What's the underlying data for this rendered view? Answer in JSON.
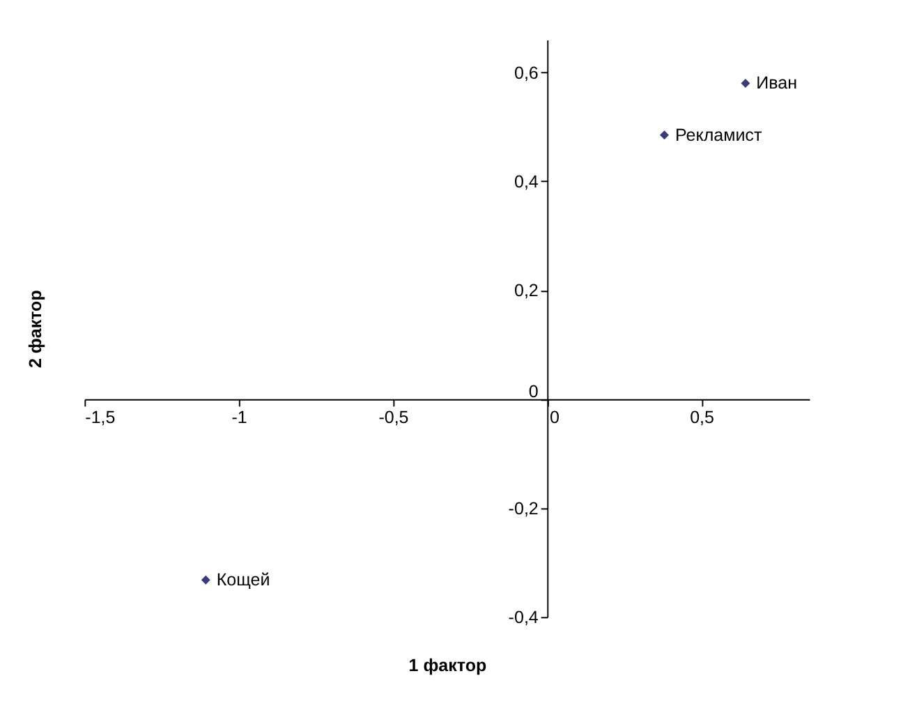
{
  "chart_data": {
    "type": "scatter",
    "xlabel": "1 фактор",
    "ylabel": "2 фактор",
    "xlim": [
      -1.5,
      0.85
    ],
    "ylim": [
      -0.4,
      0.66
    ],
    "xticks": [
      {
        "value": -1.5,
        "label": "-1,5"
      },
      -1,
      {
        "value": -0.5,
        "label": "-0,5"
      },
      0,
      {
        "value": 0.5,
        "label": "0,5"
      }
    ],
    "yticks": [
      {
        "value": -0.4,
        "label": "-0,4"
      },
      {
        "value": -0.2,
        "label": "-0,2"
      },
      0,
      {
        "value": 0.2,
        "label": "0,2"
      },
      {
        "value": 0.4,
        "label": "0,4"
      },
      {
        "value": 0.6,
        "label": "0,6"
      }
    ],
    "series": [
      {
        "name": "Иван",
        "color": "#3b3b7a",
        "x": [
          0.643
        ],
        "values": [
          0.58
        ]
      },
      {
        "name": "Рекламист",
        "color": "#3b3b7a",
        "x": [
          0.38
        ],
        "values": [
          0.485
        ]
      },
      {
        "name": "Кощей",
        "color": "#3b3b7a",
        "x": [
          -1.107
        ],
        "values": [
          -0.332
        ]
      }
    ],
    "marker": "diamond",
    "grid": false
  }
}
